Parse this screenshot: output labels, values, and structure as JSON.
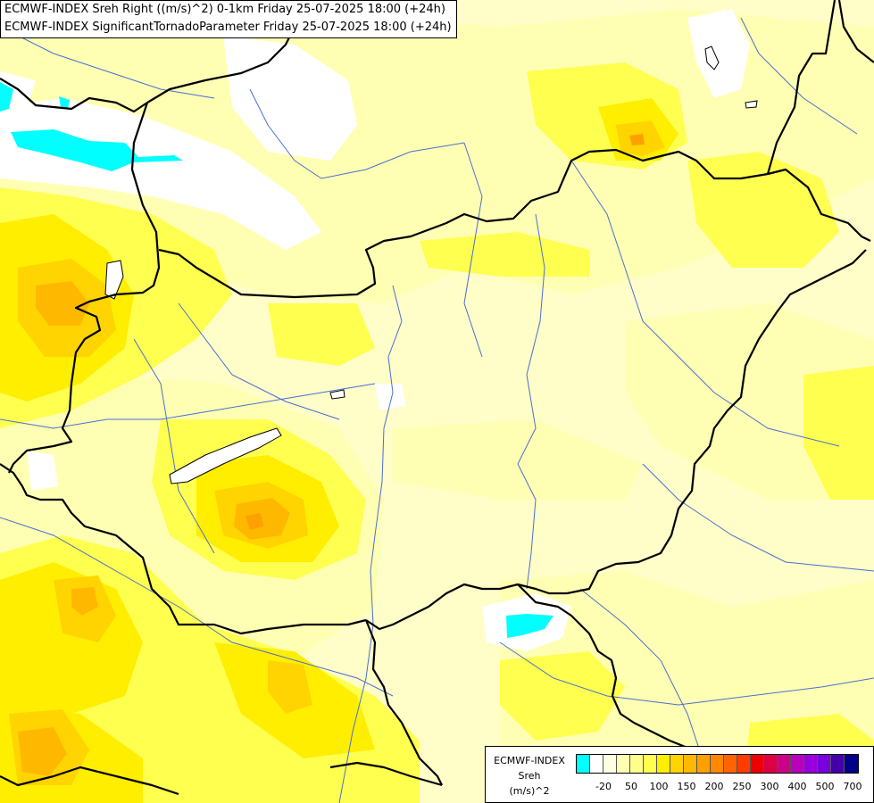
{
  "title_lines": [
    "ECMWF-INDEX Sreh Right ((m/s)^2) 0-1km Friday 25-07-2025 18:00 (+24h)",
    "ECMWF-INDEX SignificantTornadoParameter Friday 25-07-2025 18:00 (+24h)"
  ],
  "legend": {
    "line1": "ECMWF-INDEX",
    "line2": "Sreh",
    "line3": "(m/s)^2",
    "colors": [
      "#00ffff",
      "#ffffff",
      "#ffffe0",
      "#ffffb4",
      "#ffff8c",
      "#ffff50",
      "#ffee00",
      "#ffd400",
      "#ffb800",
      "#ffa000",
      "#ff8800",
      "#ff6400",
      "#ff3c00",
      "#ee0000",
      "#dd0044",
      "#cc0088",
      "#bb00bb",
      "#9900dd",
      "#7700dd",
      "#4400aa",
      "#000088"
    ],
    "ticks": [
      {
        "label": "-20",
        "index": 1
      },
      {
        "label": "50",
        "index": 3
      },
      {
        "label": "100",
        "index": 5
      },
      {
        "label": "150",
        "index": 7
      },
      {
        "label": "200",
        "index": 9
      },
      {
        "label": "250",
        "index": 11
      },
      {
        "label": "300",
        "index": 13
      },
      {
        "label": "400",
        "index": 15
      },
      {
        "label": "500",
        "index": 17
      },
      {
        "label": "700",
        "index": 19
      }
    ]
  },
  "map_colors": {
    "base": "#fffdc8",
    "light": "#ffffb4",
    "yellow": "#ffff50",
    "gold": "#ffee00",
    "amber": "#ffd400",
    "orange": "#ffb800",
    "deep_orange": "#ffa000",
    "white": "#ffffff",
    "cyan": "#00ffff",
    "country_border": "#000000",
    "river": "#4a6fd0"
  }
}
